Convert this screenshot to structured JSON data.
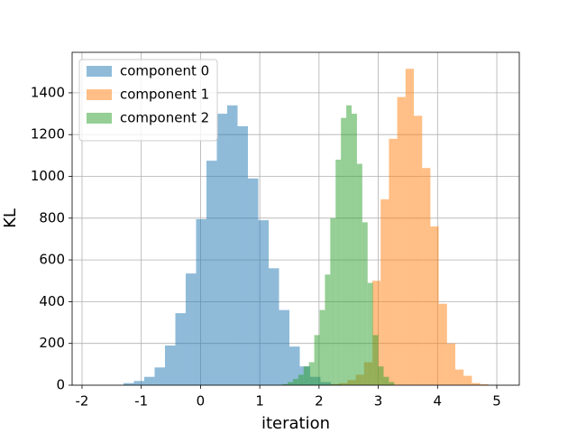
{
  "chart_data": {
    "type": "histogram",
    "xlabel": "iteration",
    "ylabel": "KL",
    "xlim": [
      -2.167,
      5.38
    ],
    "ylim": [
      0,
      1594
    ],
    "xticks": [
      -2,
      -1,
      0,
      1,
      2,
      3,
      4,
      5
    ],
    "yticks": [
      0,
      200,
      400,
      600,
      800,
      1000,
      1200,
      1400
    ],
    "grid": true,
    "legend": "upper left",
    "opacity": 0.5,
    "series": [
      {
        "name": "component 0",
        "color": "#1f77b4",
        "bins": [
          -1.3,
          -1.125,
          -0.95,
          -0.775,
          -0.6,
          -0.425,
          -0.25,
          -0.075,
          0.1,
          0.275,
          0.45,
          0.625,
          0.8,
          0.975,
          1.15,
          1.325,
          1.5,
          1.675,
          1.85,
          2.025,
          2.2,
          2.375
        ],
        "values": [
          10,
          20,
          40,
          85,
          190,
          345,
          535,
          795,
          1075,
          1300,
          1340,
          1240,
          990,
          790,
          560,
          360,
          185,
          90,
          40,
          15,
          5
        ]
      },
      {
        "name": "component 1",
        "color": "#ff7f0e",
        "bins": [
          2.2,
          2.34,
          2.48,
          2.62,
          2.76,
          2.9,
          3.04,
          3.18,
          3.32,
          3.46,
          3.6,
          3.74,
          3.88,
          4.02,
          4.16,
          4.3,
          4.44,
          4.58,
          4.72,
          4.86
        ],
        "values": [
          5,
          10,
          25,
          50,
          110,
          500,
          890,
          1180,
          1380,
          1515,
          1290,
          1040,
          760,
          390,
          200,
          75,
          45,
          10,
          5
        ]
      },
      {
        "name": "component 2",
        "color": "#2ca02c",
        "bins": [
          1.38,
          1.47,
          1.56,
          1.65,
          1.74,
          1.83,
          1.92,
          2.01,
          2.1,
          2.19,
          2.28,
          2.37,
          2.46,
          2.55,
          2.64,
          2.73,
          2.82,
          2.91,
          3.0,
          3.09,
          3.18,
          3.27
        ],
        "values": [
          5,
          15,
          30,
          50,
          90,
          110,
          240,
          360,
          530,
          800,
          1080,
          1280,
          1340,
          1300,
          1060,
          780,
          490,
          240,
          90,
          40,
          15
        ]
      }
    ]
  }
}
